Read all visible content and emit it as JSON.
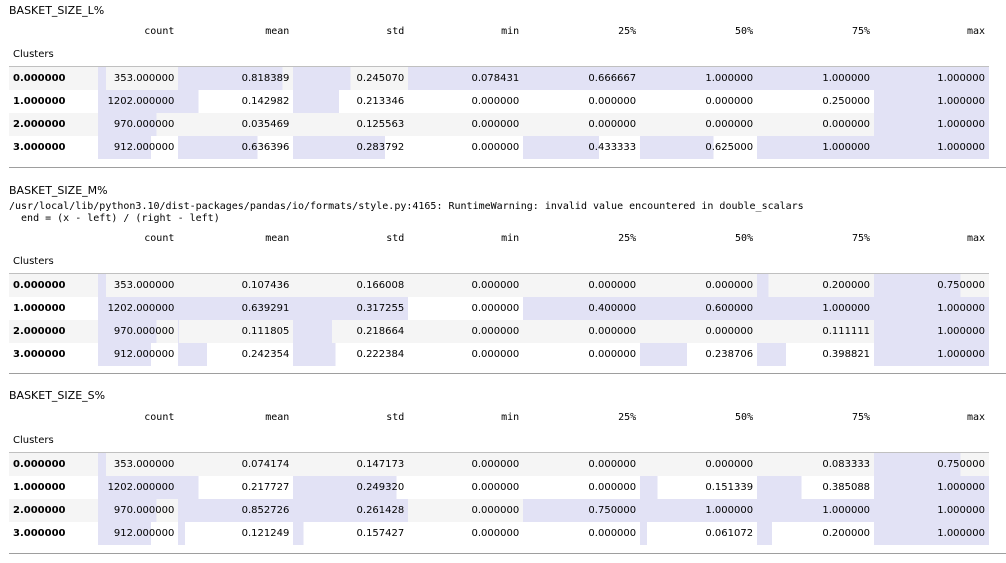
{
  "bar_color": "#e2e2f5",
  "columns": [
    "count",
    "mean",
    "std",
    "min",
    "25%",
    "50%",
    "75%",
    "max"
  ],
  "index_name": "Clusters",
  "sections": [
    {
      "title": "BASKET_SIZE_L%",
      "warning": "",
      "rows": [
        {
          "index": "0.000000",
          "cells": [
            "353.000000",
            "0.818389",
            "0.245070",
            "0.078431",
            "0.666667",
            "1.000000",
            "1.000000",
            "1.000000"
          ],
          "fill": [
            0.1,
            0.91,
            0.5,
            1.0,
            1.0,
            1.0,
            1.0,
            1.0
          ]
        },
        {
          "index": "1.000000",
          "cells": [
            "1202.000000",
            "0.142982",
            "0.213346",
            "0.000000",
            "0.000000",
            "0.000000",
            "0.250000",
            "1.000000"
          ],
          "fill": [
            1.0,
            0.18,
            0.4,
            0.0,
            0.0,
            0.0,
            0.0,
            1.0
          ]
        },
        {
          "index": "2.000000",
          "cells": [
            "970.000000",
            "0.035469",
            "0.125563",
            "0.000000",
            "0.000000",
            "0.000000",
            "0.000000",
            "1.000000"
          ],
          "fill": [
            0.73,
            0.0,
            0.0,
            0.0,
            0.0,
            0.0,
            0.0,
            1.0
          ]
        },
        {
          "index": "3.000000",
          "cells": [
            "912.000000",
            "0.636396",
            "0.283792",
            "0.000000",
            "0.433333",
            "0.625000",
            "1.000000",
            "1.000000"
          ],
          "fill": [
            0.66,
            0.69,
            0.8,
            0.0,
            0.65,
            0.63,
            1.0,
            1.0
          ]
        }
      ]
    },
    {
      "title": "BASKET_SIZE_M%",
      "warning": "/usr/local/lib/python3.10/dist-packages/pandas/io/formats/style.py:4165: RuntimeWarning: invalid value encountered in double_scalars\n  end = (x - left) / (right - left)",
      "rows": [
        {
          "index": "0.000000",
          "cells": [
            "353.000000",
            "0.107436",
            "0.166008",
            "0.000000",
            "0.000000",
            "0.000000",
            "0.200000",
            "0.750000"
          ],
          "fill": [
            0.1,
            0.0,
            0.0,
            0.0,
            0.0,
            0.0,
            0.1,
            0.75
          ]
        },
        {
          "index": "1.000000",
          "cells": [
            "1202.000000",
            "0.639291",
            "0.317255",
            "0.000000",
            "0.400000",
            "0.600000",
            "1.000000",
            "1.000000"
          ],
          "fill": [
            1.0,
            1.0,
            1.0,
            0.0,
            1.0,
            1.0,
            1.0,
            1.0
          ]
        },
        {
          "index": "2.000000",
          "cells": [
            "970.000000",
            "0.111805",
            "0.218664",
            "0.000000",
            "0.000000",
            "0.000000",
            "0.111111",
            "1.000000"
          ],
          "fill": [
            0.73,
            0.01,
            0.34,
            0.0,
            0.0,
            0.0,
            0.0,
            1.0
          ]
        },
        {
          "index": "3.000000",
          "cells": [
            "912.000000",
            "0.242354",
            "0.222384",
            "0.000000",
            "0.000000",
            "0.238706",
            "0.398821",
            "1.000000"
          ],
          "fill": [
            0.66,
            0.25,
            0.37,
            0.0,
            0.0,
            0.4,
            0.25,
            1.0
          ]
        }
      ]
    },
    {
      "title": "BASKET_SIZE_S%",
      "warning": "",
      "rows": [
        {
          "index": "0.000000",
          "cells": [
            "353.000000",
            "0.074174",
            "0.147173",
            "0.000000",
            "0.000000",
            "0.000000",
            "0.083333",
            "0.750000"
          ],
          "fill": [
            0.1,
            0.0,
            0.0,
            0.0,
            0.0,
            0.0,
            0.0,
            0.75
          ]
        },
        {
          "index": "1.000000",
          "cells": [
            "1202.000000",
            "0.217727",
            "0.249320",
            "0.000000",
            "0.000000",
            "0.151339",
            "0.385088",
            "1.000000"
          ],
          "fill": [
            1.0,
            0.18,
            0.9,
            0.0,
            0.0,
            0.15,
            0.38,
            1.0
          ]
        },
        {
          "index": "2.000000",
          "cells": [
            "970.000000",
            "0.852726",
            "0.261428",
            "0.000000",
            "0.750000",
            "1.000000",
            "1.000000",
            "1.000000"
          ],
          "fill": [
            0.73,
            1.0,
            1.0,
            0.0,
            1.0,
            1.0,
            1.0,
            1.0
          ]
        },
        {
          "index": "3.000000",
          "cells": [
            "912.000000",
            "0.121249",
            "0.157427",
            "0.000000",
            "0.000000",
            "0.061072",
            "0.200000",
            "1.000000"
          ],
          "fill": [
            0.66,
            0.06,
            0.09,
            0.0,
            0.0,
            0.06,
            0.13,
            1.0
          ]
        }
      ]
    }
  ]
}
